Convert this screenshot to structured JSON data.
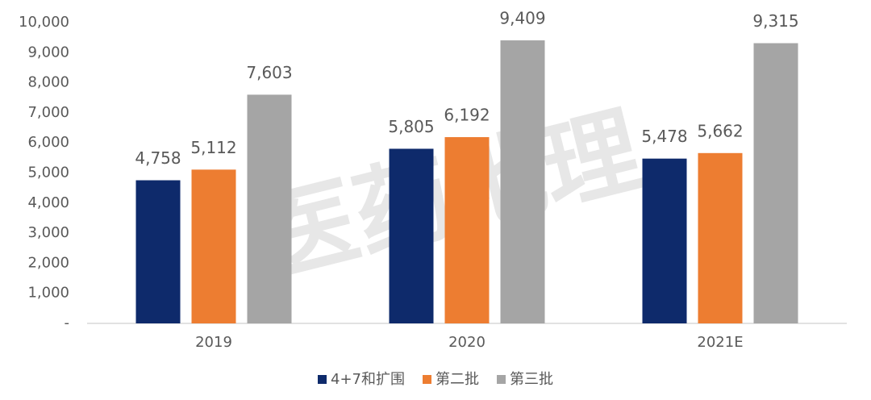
{
  "chart_data": {
    "type": "bar",
    "watermark": "医药地理",
    "categories": [
      "2019",
      "2020",
      "2021E"
    ],
    "series": [
      {
        "name": "4+7和扩围",
        "color": "#0e2a6b",
        "values": [
          4758,
          5805,
          5478
        ],
        "value_labels": [
          "4,758",
          "5,805",
          "5,478"
        ]
      },
      {
        "name": "第二批",
        "color": "#ed7d31",
        "values": [
          5112,
          6192,
          5662
        ],
        "value_labels": [
          "5,112",
          "6,192",
          "5,662"
        ]
      },
      {
        "name": "第三批",
        "color": "#a5a5a5",
        "values": [
          7603,
          9409,
          9315
        ],
        "value_labels": [
          "7,603",
          "9,409",
          "9,315"
        ]
      }
    ],
    "ylim": [
      0,
      10000
    ],
    "yticks": [
      {
        "value": 0,
        "label": "-"
      },
      {
        "value": 1000,
        "label": "1,000"
      },
      {
        "value": 2000,
        "label": "2,000"
      },
      {
        "value": 3000,
        "label": "3,000"
      },
      {
        "value": 4000,
        "label": "4,000"
      },
      {
        "value": 5000,
        "label": "5,000"
      },
      {
        "value": 6000,
        "label": "6,000"
      },
      {
        "value": 7000,
        "label": "7,000"
      },
      {
        "value": 8000,
        "label": "8,000"
      },
      {
        "value": 9000,
        "label": "9,000"
      },
      {
        "value": 10000,
        "label": "10,000"
      }
    ],
    "grid": false,
    "legend": "bottom"
  }
}
